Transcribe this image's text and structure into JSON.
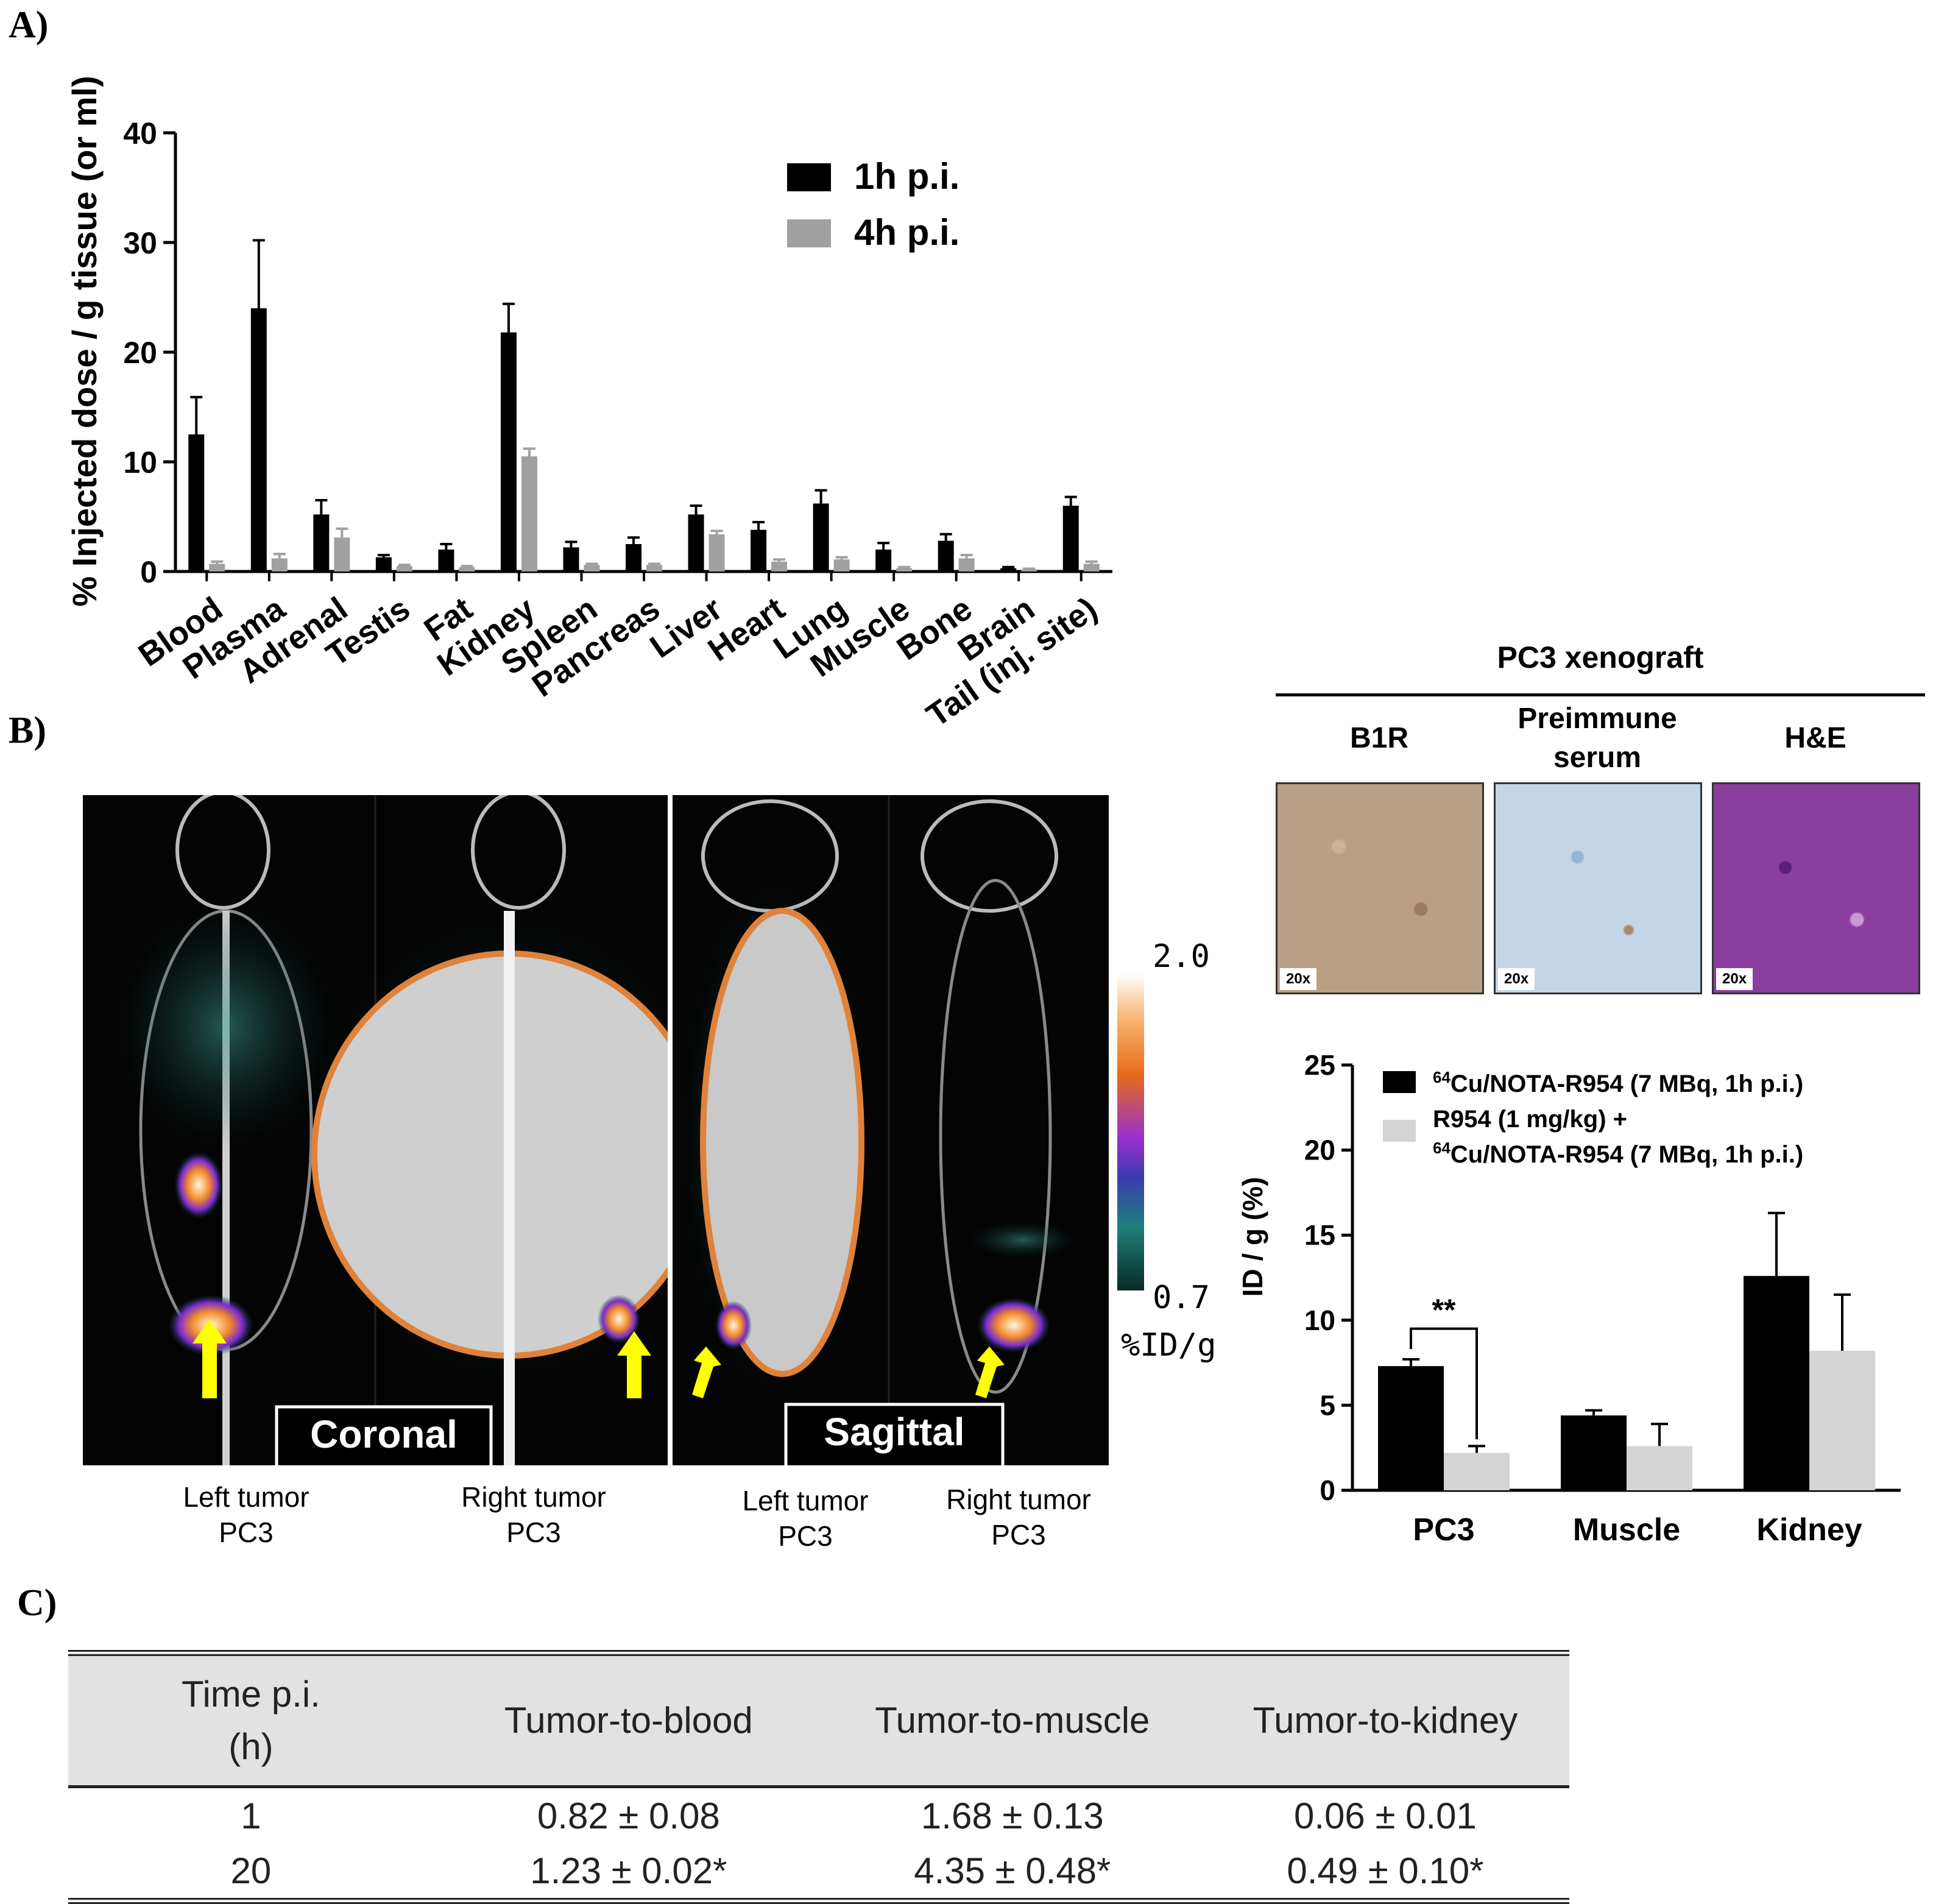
{
  "panel_labels": {
    "a": "A)",
    "b": "B)",
    "c": "C)"
  },
  "chart_data": [
    {
      "id": "biodistribution",
      "type": "bar",
      "title": "",
      "ylabel": "% Injected dose / g tissue (or ml)",
      "xlabel": "",
      "ylim": [
        0,
        40
      ],
      "yticks": [
        0,
        10,
        20,
        30,
        40
      ],
      "grid": false,
      "legend_position": "top-center",
      "categories": [
        "Blood",
        "Plasma",
        "Adrenal",
        "Testis",
        "Fat",
        "Kidney",
        "Spleen",
        "Pancreas",
        "Liver",
        "Heart",
        "Lung",
        "Muscle",
        "Bone",
        "Brain",
        "Tail (inj. site)"
      ],
      "series": [
        {
          "name": "1h p.i.",
          "color": "#000000",
          "values": [
            12.5,
            24.0,
            5.2,
            1.3,
            2.0,
            21.8,
            2.2,
            2.5,
            5.2,
            3.8,
            6.2,
            2.0,
            2.8,
            0.3,
            6.0
          ],
          "errors": [
            3.4,
            6.2,
            1.3,
            0.2,
            0.5,
            2.6,
            0.5,
            0.6,
            0.8,
            0.7,
            1.2,
            0.6,
            0.6,
            0.1,
            0.8
          ]
        },
        {
          "name": "4h p.i.",
          "color": "#a0a0a0",
          "values": [
            0.7,
            1.2,
            3.1,
            0.5,
            0.4,
            10.5,
            0.6,
            0.6,
            3.4,
            0.9,
            1.1,
            0.3,
            1.2,
            0.2,
            0.7
          ],
          "errors": [
            0.2,
            0.4,
            0.8,
            0.1,
            0.1,
            0.7,
            0.1,
            0.1,
            0.3,
            0.2,
            0.2,
            0.1,
            0.3,
            0.05,
            0.2
          ]
        }
      ]
    },
    {
      "id": "blocking",
      "type": "bar",
      "title": "",
      "ylabel": "ID / g (%)",
      "xlabel": "",
      "ylim": [
        0,
        25
      ],
      "yticks": [
        0,
        5,
        10,
        15,
        20,
        25
      ],
      "grid": false,
      "legend_position": "top",
      "categories": [
        "PC3",
        "Muscle",
        "Kidney"
      ],
      "series": [
        {
          "name": "Cu/NOTA-R954 (7 MBq, 1h p.i.)",
          "color": "#000000",
          "values": [
            7.3,
            4.4,
            12.6
          ],
          "errors": [
            0.4,
            0.3,
            3.7
          ]
        },
        {
          "name": "R954 (1 mg/kg) + Cu/NOTA-R954 (7 MBq, 1h p.i.)",
          "color": "#d4d4d4",
          "values": [
            2.2,
            2.6,
            8.2
          ],
          "errors": [
            0.4,
            1.3,
            3.3
          ]
        }
      ],
      "legend_superscript": "64",
      "annotation": "**"
    }
  ],
  "imaging": {
    "views": [
      {
        "label": "Coronal",
        "left_caption_1": "Left tumor",
        "left_caption_2": "PC3",
        "right_caption_1": "Right tumor",
        "right_caption_2": "PC3"
      },
      {
        "label": "Sagittal",
        "left_caption_1": "Left tumor",
        "left_caption_2": "PC3",
        "right_caption_1": "Right tumor",
        "right_caption_2": "PC3"
      }
    ],
    "colorbar": {
      "max": "2.0",
      "min": "0.7",
      "unit": "%ID/g"
    }
  },
  "histology": {
    "title": "PC3 xenograft",
    "columns": [
      {
        "label_1": "B1R",
        "label_2": "",
        "magnification": "20x",
        "color": "#b89f86"
      },
      {
        "label_1": "Preimmune",
        "label_2": "serum",
        "magnification": "20x",
        "color": "#b9cde0"
      },
      {
        "label_1": "H&E",
        "label_2": "",
        "magnification": "20x",
        "color": "#8a3f9e"
      }
    ]
  },
  "ratio_table": {
    "headers": [
      "Time p.i.",
      "(h)",
      "Tumor-to-blood",
      "Tumor-to-muscle",
      "Tumor-to-kidney"
    ],
    "rows": [
      [
        "1",
        "0.82 ± 0.08",
        "1.68 ± 0.13",
        "0.06 ± 0.01"
      ],
      [
        "20",
        "1.23 ± 0.02*",
        "4.35 ± 0.48*",
        "0.49 ± 0.10*"
      ]
    ]
  }
}
